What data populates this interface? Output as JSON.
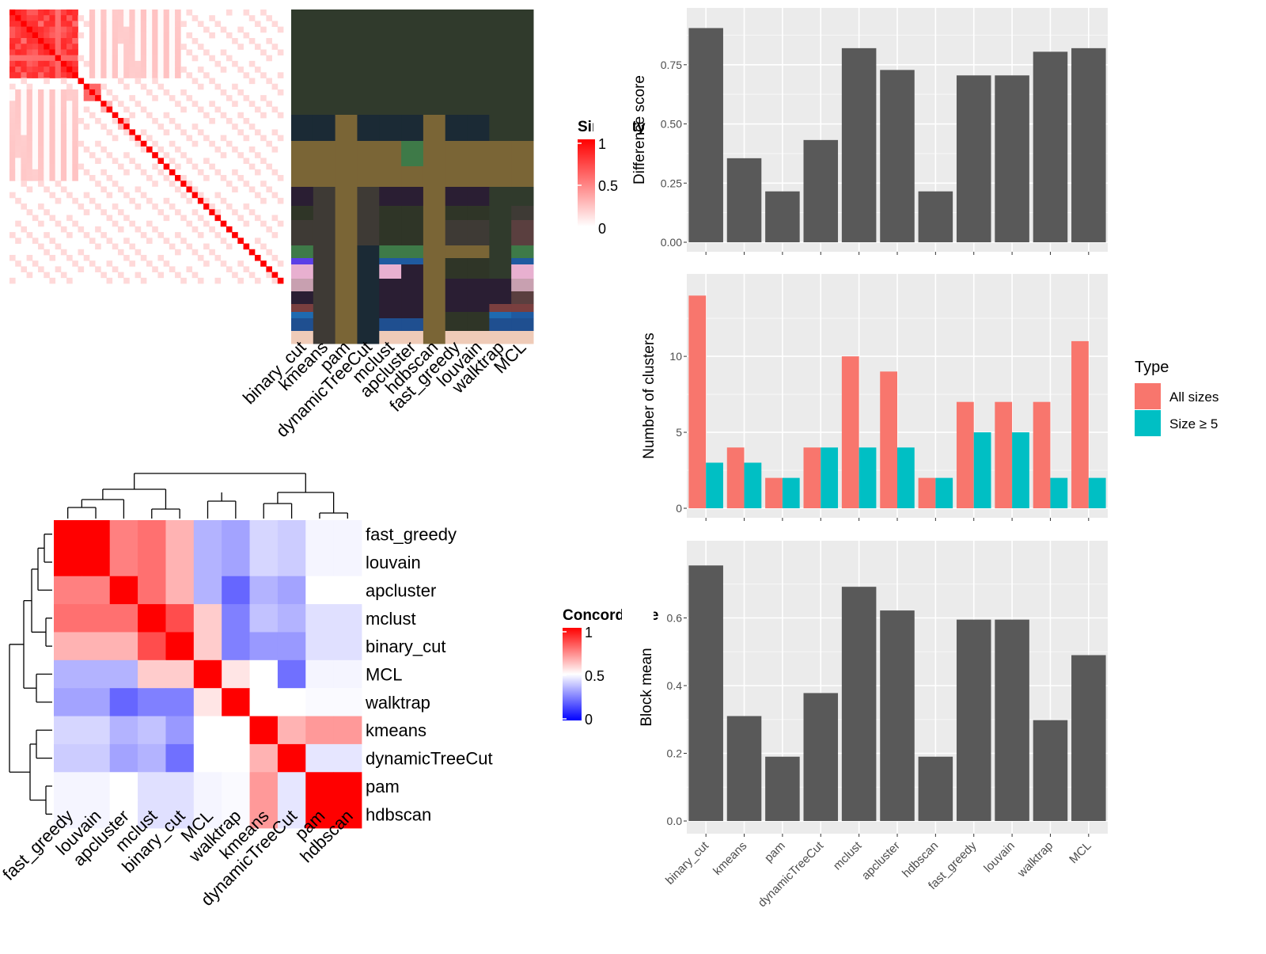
{
  "chart_data": [
    {
      "type": "heatmap",
      "panel": "similarity-heatmap",
      "legend_title": "Similarity",
      "legend_ticks": [
        "1",
        "0.5",
        "0"
      ],
      "method_labels": [
        "binary_cut",
        "kmeans",
        "pam",
        "dynamicTreeCut",
        "mclust",
        "apcluster",
        "hdbscan",
        "fast_greedy",
        "louvain",
        "walktrap",
        "MCL"
      ],
      "color_low": "#ffffff",
      "color_high": "#ff0000"
    },
    {
      "type": "heatmap",
      "panel": "concordance-heatmap",
      "legend_title": "Concordance",
      "legend_ticks": [
        "1",
        "0.5",
        "0"
      ],
      "row_labels": [
        "fast_greedy",
        "louvain",
        "apcluster",
        "mclust",
        "binary_cut",
        "MCL",
        "walktrap",
        "kmeans",
        "dynamicTreeCut",
        "pam",
        "hdbscan"
      ],
      "col_labels": [
        "fast_greedy",
        "louvain",
        "apcluster",
        "mclust",
        "binary_cut",
        "MCL",
        "walktrap",
        "kmeans",
        "dynamicTreeCut",
        "pam",
        "hdbscan"
      ],
      "values": [
        [
          1.0,
          1.0,
          0.75,
          0.78,
          0.65,
          0.35,
          0.32,
          0.42,
          0.4,
          0.48,
          0.48
        ],
        [
          1.0,
          1.0,
          0.75,
          0.78,
          0.65,
          0.35,
          0.32,
          0.42,
          0.4,
          0.48,
          0.48
        ],
        [
          0.75,
          0.75,
          1.0,
          0.78,
          0.65,
          0.35,
          0.2,
          0.35,
          0.32,
          0.5,
          0.5
        ],
        [
          0.78,
          0.78,
          0.78,
          1.0,
          0.85,
          0.6,
          0.25,
          0.38,
          0.35,
          0.44,
          0.44
        ],
        [
          0.65,
          0.65,
          0.65,
          0.85,
          1.0,
          0.6,
          0.25,
          0.3,
          0.3,
          0.44,
          0.44
        ],
        [
          0.35,
          0.35,
          0.35,
          0.6,
          0.6,
          1.0,
          0.55,
          0.5,
          0.22,
          0.48,
          0.48
        ],
        [
          0.32,
          0.32,
          0.2,
          0.25,
          0.25,
          0.55,
          1.0,
          0.5,
          0.5,
          0.49,
          0.49
        ],
        [
          0.42,
          0.42,
          0.35,
          0.38,
          0.3,
          0.5,
          0.5,
          1.0,
          0.65,
          0.7,
          0.7
        ],
        [
          0.4,
          0.4,
          0.32,
          0.35,
          0.22,
          0.5,
          0.5,
          0.65,
          1.0,
          0.45,
          0.45
        ],
        [
          0.48,
          0.48,
          0.5,
          0.44,
          0.44,
          0.48,
          0.49,
          0.7,
          0.45,
          1.0,
          1.0
        ],
        [
          0.48,
          0.48,
          0.5,
          0.44,
          0.44,
          0.48,
          0.49,
          0.7,
          0.45,
          1.0,
          1.0
        ]
      ]
    },
    {
      "type": "bar",
      "panel": "difference-score",
      "ylabel": "Difference score",
      "categories": [
        "binary_cut",
        "kmeans",
        "pam",
        "dynamicTreeCut",
        "mclust",
        "apcluster",
        "hdbscan",
        "fast_greedy",
        "louvain",
        "walktrap",
        "MCL"
      ],
      "values": [
        0.905,
        0.355,
        0.215,
        0.432,
        0.82,
        0.728,
        0.215,
        0.705,
        0.705,
        0.805,
        0.82
      ],
      "yticks": [
        "0.00",
        "0.25",
        "0.50",
        "0.75"
      ],
      "ylim": [
        0,
        0.95
      ],
      "bar_color": "#595959"
    },
    {
      "type": "bar",
      "panel": "number-of-clusters",
      "ylabel": "Number of clusters",
      "categories": [
        "binary_cut",
        "kmeans",
        "pam",
        "dynamicTreeCut",
        "mclust",
        "apcluster",
        "hdbscan",
        "fast_greedy",
        "louvain",
        "walktrap",
        "MCL"
      ],
      "series": [
        {
          "name": "All sizes",
          "color": "#F8766D",
          "values": [
            14,
            4,
            2,
            4,
            10,
            9,
            2,
            7,
            7,
            7,
            11
          ]
        },
        {
          "name": "Size ≥ 5",
          "color": "#00BFC4",
          "values": [
            3,
            3,
            2,
            4,
            4,
            4,
            2,
            5,
            5,
            2,
            2
          ]
        }
      ],
      "yticks": [
        "0",
        "5",
        "10"
      ],
      "ylim": [
        0,
        14.8
      ],
      "legend_title": "Type",
      "legend_position": "right"
    },
    {
      "type": "bar",
      "panel": "block-mean",
      "ylabel": "Block mean",
      "categories": [
        "binary_cut",
        "kmeans",
        "pam",
        "dynamicTreeCut",
        "mclust",
        "apcluster",
        "hdbscan",
        "fast_greedy",
        "louvain",
        "walktrap",
        "MCL"
      ],
      "values": [
        0.755,
        0.31,
        0.19,
        0.378,
        0.692,
        0.622,
        0.19,
        0.595,
        0.595,
        0.298,
        0.49
      ],
      "yticks": [
        "0.0",
        "0.2",
        "0.4",
        "0.6"
      ],
      "ylim": [
        0,
        0.8
      ],
      "bar_color": "#595959"
    }
  ]
}
